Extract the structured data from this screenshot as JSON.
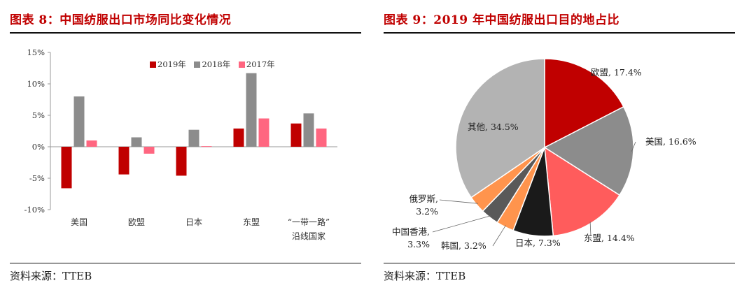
{
  "left": {
    "title": "图表 8：中国纺服出口市场同比变化情况",
    "source": "资料来源：TTEB"
  },
  "right": {
    "title": "图表 9：2019 年中国纺服出口目的地占比",
    "source": "资料来源：TTEB"
  },
  "colors": {
    "accent": "#c00000",
    "s2019": "#c00000",
    "s2018": "#8c8c8c",
    "s2017": "#ff6680"
  },
  "chart_data": [
    {
      "type": "bar",
      "categories": [
        "美国",
        "欧盟",
        "日本",
        "东盟",
        "“一带一路”沿线国家"
      ],
      "category_lines": [
        [
          "美国"
        ],
        [
          "欧盟"
        ],
        [
          "日本"
        ],
        [
          "东盟"
        ],
        [
          "“一带一路”",
          "沿线国家"
        ]
      ],
      "series": [
        {
          "name": "2019年",
          "values": [
            -6.6,
            -4.4,
            -4.6,
            2.9,
            3.7
          ],
          "color": "#c00000"
        },
        {
          "name": "2018年",
          "values": [
            8.0,
            1.5,
            2.7,
            11.7,
            5.3
          ],
          "color": "#8c8c8c"
        },
        {
          "name": "2017年",
          "values": [
            1.0,
            -1.1,
            0.1,
            4.5,
            2.9
          ],
          "color": "#ff6680"
        }
      ],
      "ylim": [
        -10,
        15
      ],
      "yticks": [
        "-10%",
        "-5%",
        "0%",
        "5%",
        "10%",
        "15%"
      ],
      "ytick_values": [
        -10,
        -5,
        0,
        5,
        10,
        15
      ],
      "legend": "top-center",
      "grid": false
    },
    {
      "type": "pie",
      "labels": [
        "欧盟",
        "美国",
        "东盟",
        "日本",
        "韩国",
        "中国香港",
        "俄罗斯",
        "其他"
      ],
      "values": [
        17.4,
        16.6,
        14.4,
        7.3,
        3.2,
        3.3,
        3.2,
        34.5
      ],
      "value_labels": [
        "17.4%",
        "16.6%",
        "14.4%",
        "7.3%",
        "3.2%",
        "3.3%",
        "3.2%",
        "34.5%"
      ],
      "colors": [
        "#c00000",
        "#8c8c8c",
        "#ff5c5c",
        "#1a1a1a",
        "#ff944d",
        "#595959",
        "#ff944d",
        "#b3b3b3"
      ],
      "start_angle": "12 o'clock, clockwise"
    }
  ]
}
